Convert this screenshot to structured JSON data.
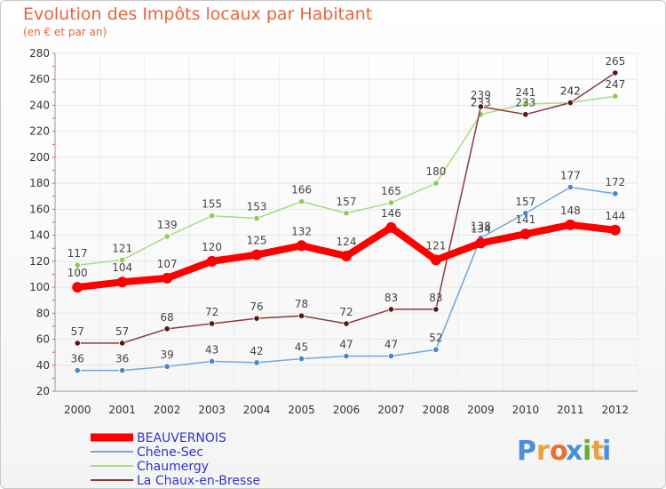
{
  "chart_data": {
    "type": "line",
    "title": "Evolution des Impôts locaux par Habitant",
    "subtitle": "(en € et par an)",
    "x": [
      "2000",
      "2001",
      "2002",
      "2003",
      "2004",
      "2005",
      "2006",
      "2007",
      "2008",
      "2009",
      "2010",
      "2011",
      "2012"
    ],
    "yticks": [
      20,
      40,
      60,
      80,
      100,
      120,
      140,
      160,
      180,
      200,
      220,
      240,
      260,
      280
    ],
    "ylim": [
      20,
      280
    ],
    "grid": true,
    "legend_position": "bottom-left",
    "series": [
      {
        "name": "Chêne-Sec",
        "color": "#6fa8dc",
        "marker": "#4a86c8",
        "width": 1.5,
        "values": [
          36,
          36,
          39,
          43,
          42,
          45,
          47,
          47,
          52,
          138,
          157,
          177,
          172
        ]
      },
      {
        "name": "Chaumergy",
        "color": "#a8dc80",
        "marker": "#8ccc50",
        "width": 1.5,
        "values": [
          117,
          121,
          139,
          155,
          153,
          166,
          157,
          165,
          180,
          233,
          241,
          242,
          247
        ]
      },
      {
        "name": "La Chaux-en-Bresse",
        "color": "#8b3a3a",
        "marker": "#5a1414",
        "width": 1.5,
        "values": [
          57,
          57,
          68,
          72,
          76,
          78,
          72,
          83,
          83,
          239,
          233,
          242,
          265
        ]
      },
      {
        "name": "BEAUVERNOIS",
        "color": "#ff0000",
        "marker": "#ff0000",
        "width": 8,
        "values": [
          100,
          104,
          107,
          120,
          125,
          132,
          124,
          146,
          121,
          134,
          141,
          148,
          144
        ]
      }
    ],
    "legend": [
      {
        "name": "BEAUVERNOIS",
        "color": "#ff0000",
        "text_color": "#3333cc"
      },
      {
        "name": "Chêne-Sec",
        "color": "#6fa8dc",
        "text_color": "#3333cc"
      },
      {
        "name": "Chaumergy",
        "color": "#a8dc80",
        "text_color": "#3333cc"
      },
      {
        "name": "La Chaux-en-Bresse",
        "color": "#8b3a3a",
        "text_color": "#3333cc"
      }
    ]
  },
  "logo": {
    "letters": [
      "P",
      "r",
      "o",
      "x",
      "i",
      "t",
      "i"
    ],
    "colors": [
      "#4a90d9",
      "#e8a040",
      "#e87030",
      "#4a90d9",
      "#60b030",
      "#e8a040",
      "#4a90d9"
    ]
  }
}
